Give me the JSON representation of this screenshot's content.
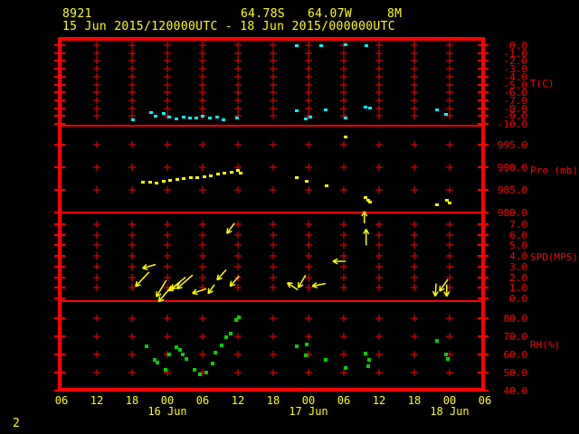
{
  "header": {
    "station_id": "8921",
    "latitude": "64.78S",
    "longitude": "64.07W",
    "elevation": "8M",
    "time_range": "15 Jun 2015/120000UTC - 18 Jun 2015/000000UTC"
  },
  "footer": {
    "page_number": "2"
  },
  "colors": {
    "background": "#000000",
    "frame": "#ff0000",
    "axis_text": "#ff0000",
    "header_text": "#ffff00",
    "temperature": "#00ffff",
    "pressure": "#ffff00",
    "wind": "#ffff00",
    "humidity": "#00d000"
  },
  "chart_data": {
    "type": "scatter",
    "layout": "four stacked time-series panels, shared time axis, grid of red plus marks, labels on right",
    "x_axis": {
      "start": "15 Jun 2015 06UTC",
      "hours_per_tick": 6,
      "tick_labels": [
        "06",
        "12",
        "18",
        "00",
        "06",
        "12",
        "18",
        "00",
        "06",
        "12",
        "18",
        "00",
        "06"
      ],
      "date_labels": [
        {
          "label": "16 Jun",
          "tick_index": 3
        },
        {
          "label": "17 Jun",
          "tick_index": 7
        },
        {
          "label": "18 Jun",
          "tick_index": 11
        }
      ]
    },
    "panels": [
      {
        "id": "temperature",
        "unit_label": "T(C)",
        "type": "scatter",
        "color": "#00ffff",
        "ylim": [
          -10,
          0
        ],
        "ticks": [
          [
            "0.0",
            0
          ],
          [
            "-1.0",
            -1
          ],
          [
            "-2.0",
            -2
          ],
          [
            "-3.0",
            -3
          ],
          [
            "-4.0",
            -4
          ],
          [
            "-5.0",
            -5
          ],
          [
            "-6.0",
            -6
          ],
          [
            "-7.0",
            -7
          ],
          [
            "-8.0",
            -8
          ],
          [
            "-9.0",
            -9
          ],
          [
            "-10.0",
            -10
          ]
        ],
        "points": [
          [
            12.2,
            -9.5
          ],
          [
            15.2,
            -8.6
          ],
          [
            16,
            -9.1
          ],
          [
            17.4,
            -8.7
          ],
          [
            18.3,
            -9.2
          ],
          [
            19.5,
            -9.4
          ],
          [
            20.8,
            -9.2
          ],
          [
            21.8,
            -9.3
          ],
          [
            22.9,
            -9.3
          ],
          [
            24,
            -9.1
          ],
          [
            25.2,
            -9.3
          ],
          [
            26.5,
            -9.2
          ],
          [
            27.5,
            -9.5
          ],
          [
            29.8,
            -9.3
          ],
          [
            40,
            -0.1
          ],
          [
            44.2,
            -0.1
          ],
          [
            48.3,
            0
          ],
          [
            51.8,
            -0.1
          ],
          [
            40,
            -8.4
          ],
          [
            41.5,
            -9.4
          ],
          [
            42.3,
            -9.2
          ],
          [
            44.9,
            -8.3
          ],
          [
            48.3,
            -9.3
          ],
          [
            51.7,
            -7.9
          ],
          [
            52.5,
            -8
          ],
          [
            63.8,
            -8.3
          ],
          [
            65.4,
            -8.9
          ]
        ]
      },
      {
        "id": "pressure",
        "unit_label": "Pre (mb)",
        "type": "scatter",
        "color": "#ffff00",
        "ylim": [
          979,
          999
        ],
        "ticks": [
          [
            "995.0",
            995
          ],
          [
            "990.0",
            990
          ],
          [
            "985.0",
            985
          ],
          [
            "980.0",
            980
          ]
        ],
        "points": [
          [
            13.8,
            986.6
          ],
          [
            15.1,
            986.6
          ],
          [
            16.2,
            986.4
          ],
          [
            17.4,
            986.8
          ],
          [
            18.5,
            987
          ],
          [
            19.7,
            987.2
          ],
          [
            20.8,
            987.4
          ],
          [
            22,
            987.6
          ],
          [
            23.1,
            987.6
          ],
          [
            24.3,
            987.8
          ],
          [
            25.4,
            988
          ],
          [
            26.6,
            988.4
          ],
          [
            27.7,
            988.6
          ],
          [
            28.9,
            988.8
          ],
          [
            30,
            989.2
          ],
          [
            30.5,
            988.6
          ],
          [
            40,
            987.6
          ],
          [
            41.7,
            986.8
          ],
          [
            45.1,
            985.8
          ],
          [
            48.3,
            996.6
          ],
          [
            51.7,
            983.2
          ],
          [
            52.2,
            982.6
          ],
          [
            52.5,
            982.2
          ],
          [
            63.8,
            981.6
          ],
          [
            65.5,
            982.6
          ],
          [
            66,
            982
          ]
        ]
      },
      {
        "id": "wind_speed",
        "unit_label": "SPD(MPS)",
        "type": "vector",
        "color": "#ffff00",
        "ylim": [
          0,
          8
        ],
        "ticks": [
          [
            "7.0",
            7
          ],
          [
            "6.0",
            6
          ],
          [
            "5.0",
            5
          ],
          [
            "4.0",
            4
          ],
          [
            "3.0",
            3
          ],
          [
            "2.0",
            2
          ],
          [
            "1.0",
            1
          ],
          [
            "0.0",
            0
          ]
        ],
        "arrows_note": "each arrow: [hours, speed_mps, screen_angle_deg, length_px]",
        "arrows": [
          [
            29.4,
            7.1,
            126,
            14
          ],
          [
            16,
            3.2,
            164,
            15
          ],
          [
            14.9,
            2.5,
            133,
            22
          ],
          [
            17.8,
            1.7,
            121,
            21
          ],
          [
            21.1,
            2,
            141,
            21
          ],
          [
            22.3,
            2.2,
            139,
            23
          ],
          [
            20.2,
            1.5,
            145,
            16
          ],
          [
            24.6,
            0.9,
            162,
            16
          ],
          [
            28,
            2.7,
            132,
            15
          ],
          [
            26,
            1.3,
            125,
            12
          ],
          [
            30.2,
            2.1,
            132,
            15
          ],
          [
            18.2,
            0.8,
            130,
            17
          ],
          [
            51.5,
            7.1,
            -90,
            13
          ],
          [
            51.8,
            5,
            -90,
            18
          ],
          [
            48.3,
            3.5,
            180,
            14
          ],
          [
            41.5,
            2.2,
            120,
            16
          ],
          [
            40.2,
            0.8,
            -146,
            14
          ],
          [
            44.9,
            1.4,
            169,
            15
          ],
          [
            63.7,
            1.4,
            94,
            14
          ],
          [
            65.7,
            1.8,
            125,
            16
          ],
          [
            65.5,
            1.3,
            90,
            13
          ]
        ]
      },
      {
        "id": "humidity",
        "unit_label": "RH(%)",
        "type": "scatter",
        "color": "#00d000",
        "ylim": [
          40,
          85
        ],
        "ticks": [
          [
            "80.0",
            80
          ],
          [
            "70.0",
            70
          ],
          [
            "60.0",
            60
          ],
          [
            "50.0",
            50
          ],
          [
            "40.0",
            40
          ]
        ],
        "points": [
          [
            14.5,
            64.5
          ],
          [
            15.8,
            57
          ],
          [
            16.3,
            55.5
          ],
          [
            17.7,
            51.5
          ],
          [
            18.3,
            60
          ],
          [
            19.5,
            64
          ],
          [
            20.2,
            62.5
          ],
          [
            20.6,
            60
          ],
          [
            21.2,
            57.5
          ],
          [
            22.6,
            51.5
          ],
          [
            23.5,
            49
          ],
          [
            24.6,
            50
          ],
          [
            25.7,
            55
          ],
          [
            26.2,
            61
          ],
          [
            27.2,
            65
          ],
          [
            28,
            69.5
          ],
          [
            28.8,
            71.5
          ],
          [
            29.7,
            79
          ],
          [
            30.2,
            80.5
          ],
          [
            40,
            64.5
          ],
          [
            41.7,
            65.5
          ],
          [
            41.5,
            59.5
          ],
          [
            44.9,
            57
          ],
          [
            48.3,
            52.5
          ],
          [
            51.7,
            60.5
          ],
          [
            52.3,
            57
          ],
          [
            52.2,
            53.5
          ],
          [
            63.8,
            67.5
          ],
          [
            65.4,
            60
          ],
          [
            65.7,
            57.5
          ]
        ]
      }
    ]
  }
}
